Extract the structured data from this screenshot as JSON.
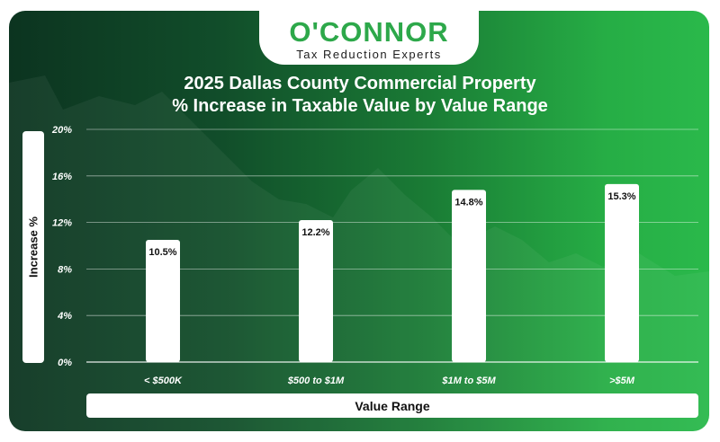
{
  "logo": {
    "brand": "O'CONNOR",
    "tagline": "Tax Reduction Experts"
  },
  "colors": {
    "brand_green": "#2da84a",
    "bar_fill": "#ffffff",
    "background_dark": "#0c3420",
    "background_light": "#2ab94b"
  },
  "chart_data": {
    "type": "bar",
    "title": "2025 Dallas County Commercial Property",
    "subtitle": "% Increase in Taxable Value by Value Range",
    "xlabel": "Value Range",
    "ylabel": "Increase %",
    "categories": [
      "< $500K",
      "$500 to $1M",
      "$1M to $5M",
      ">$5M"
    ],
    "values": [
      10.5,
      12.2,
      14.8,
      15.3
    ],
    "value_labels": [
      "10.5%",
      "12.2%",
      "14.8%",
      "15.3%"
    ],
    "y_ticks": [
      0,
      4,
      8,
      12,
      16,
      20
    ],
    "y_tick_labels": [
      "0%",
      "4%",
      "8%",
      "12%",
      "16%",
      "20%"
    ],
    "ylim": [
      0,
      20
    ],
    "grid": true,
    "legend": "none"
  }
}
